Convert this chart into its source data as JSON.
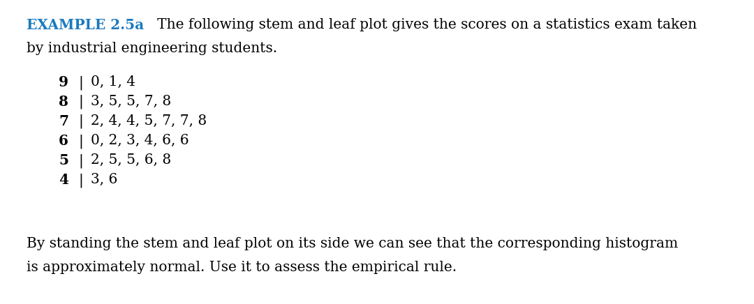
{
  "title_bold": "EXAMPLE 2.5a",
  "title_color": "#1a7abf",
  "title_rest_line1": "   The following stem and leaf plot gives the scores on a statistics exam taken",
  "title_line2": "by industrial engineering students.",
  "body_color": "#000000",
  "background_color": "#ffffff",
  "fontsize": 14.5,
  "stems": [
    "9",
    "8",
    "7",
    "6",
    "5",
    "4"
  ],
  "leaves": [
    "0, 1, 4",
    "3, 5, 5, 7, 8",
    "2, 4, 4, 5, 7, 7, 8",
    "0, 2, 3, 4, 6, 6",
    "2, 5, 5, 6, 8",
    "3, 6"
  ],
  "footer_line1": "By standing the stem and leaf plot on its side we can see that the corresponding histogram",
  "footer_line2": "is approximately normal. Use it to assess the empirical rule."
}
